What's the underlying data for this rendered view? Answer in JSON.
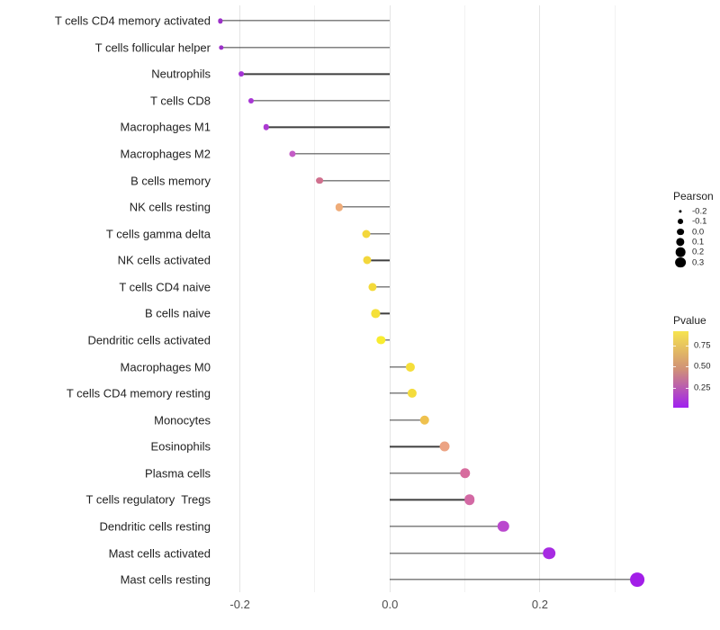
{
  "chart_data": {
    "type": "scatter",
    "variant": "lollipop",
    "orientation": "horizontal",
    "title": "",
    "xlabel": "",
    "ylabel": "",
    "xlim": [
      -0.26,
      0.345
    ],
    "grid": true,
    "x_ticks": [
      {
        "value": -0.2,
        "label": "-0.2"
      },
      {
        "value": 0.0,
        "label": "0.0"
      },
      {
        "value": 0.2,
        "label": "0.2"
      }
    ],
    "gridlines": {
      "major": [
        -0.2,
        0.0,
        0.2
      ],
      "minor": [
        -0.1,
        0.1,
        0.3
      ]
    },
    "baseline_x": 0.0,
    "points": [
      {
        "label": "T cells CD4 memory activated",
        "pearson": -0.226,
        "pvalue_est": 0.1,
        "color": "#9B30C8"
      },
      {
        "label": "T cells follicular helper",
        "pearson": -0.225,
        "pvalue_est": 0.1,
        "color": "#9B30C8"
      },
      {
        "label": "Neutrophils",
        "pearson": -0.198,
        "pvalue_est": 0.13,
        "color": "#A434D4"
      },
      {
        "label": "T cells CD8",
        "pearson": -0.185,
        "pvalue_est": 0.14,
        "color": "#A837D4"
      },
      {
        "label": "Macrophages M1",
        "pearson": -0.165,
        "pvalue_est": 0.15,
        "color": "#AC3AD2"
      },
      {
        "label": "Macrophages M2",
        "pearson": -0.13,
        "pvalue_est": 0.3,
        "color": "#C45CC6"
      },
      {
        "label": "B cells memory",
        "pearson": -0.094,
        "pvalue_est": 0.45,
        "color": "#D0708E"
      },
      {
        "label": "NK cells resting",
        "pearson": -0.068,
        "pvalue_est": 0.62,
        "color": "#EFAC79"
      },
      {
        "label": "T cells gamma delta",
        "pearson": -0.032,
        "pvalue_est": 0.8,
        "color": "#F3D73C"
      },
      {
        "label": "NK cells activated",
        "pearson": -0.03,
        "pvalue_est": 0.8,
        "color": "#F3D73C"
      },
      {
        "label": "T cells CD4 naive",
        "pearson": -0.023,
        "pvalue_est": 0.82,
        "color": "#F4DA3A"
      },
      {
        "label": "B cells naive",
        "pearson": -0.019,
        "pvalue_est": 0.85,
        "color": "#F5E038"
      },
      {
        "label": "Dendritic cells activated",
        "pearson": -0.012,
        "pvalue_est": 0.92,
        "color": "#F8EC30"
      },
      {
        "label": "Macrophages M0",
        "pearson": 0.027,
        "pvalue_est": 0.83,
        "color": "#F5DE3A"
      },
      {
        "label": "T cells CD4 memory resting",
        "pearson": 0.03,
        "pvalue_est": 0.82,
        "color": "#F4DC3C"
      },
      {
        "label": "Monocytes",
        "pearson": 0.046,
        "pvalue_est": 0.7,
        "color": "#EFC14E"
      },
      {
        "label": "Eosinophils",
        "pearson": 0.073,
        "pvalue_est": 0.6,
        "color": "#ECA383"
      },
      {
        "label": "Plasma cells",
        "pearson": 0.1,
        "pvalue_est": 0.42,
        "color": "#D76C9E"
      },
      {
        "label": "T cells regulatory  Tregs",
        "pearson": 0.106,
        "pvalue_est": 0.4,
        "color": "#D369A4"
      },
      {
        "label": "Dendritic cells resting",
        "pearson": 0.151,
        "pvalue_est": 0.25,
        "color": "#BA48CE"
      },
      {
        "label": "Mast cells activated",
        "pearson": 0.212,
        "pvalue_est": 0.12,
        "color": "#A72BE2"
      },
      {
        "label": "Mast cells resting",
        "pearson": 0.33,
        "pvalue_est": 0.08,
        "color": "#A21EE8"
      }
    ],
    "legends": {
      "size": {
        "title": "Pearson",
        "position": "right",
        "entries": [
          {
            "value": -0.2,
            "label": "-0.2"
          },
          {
            "value": -0.1,
            "label": "-0.1"
          },
          {
            "value": 0.0,
            "label": "0.0"
          },
          {
            "value": 0.1,
            "label": "0.1"
          },
          {
            "value": 0.2,
            "label": "0.2"
          },
          {
            "value": 0.3,
            "label": "0.3"
          }
        ]
      },
      "color": {
        "title": "Pvalue",
        "position": "right",
        "ticks": [
          {
            "value": 0.75,
            "label": "0.75"
          },
          {
            "value": 0.5,
            "label": "0.50"
          },
          {
            "value": 0.25,
            "label": "0.25"
          }
        ],
        "gradient_high": "#F6E44E",
        "gradient_mid": "#D09078",
        "gradient_low": "#A020F0",
        "range": [
          0.05,
          0.95
        ]
      }
    },
    "colors": {
      "stem": "#3F3F3F",
      "grid_major": "#E4E4E4",
      "grid_minor": "#F2F2F2",
      "axis_text": "#4D4D4D",
      "label_text": "#1F1F1F"
    }
  }
}
